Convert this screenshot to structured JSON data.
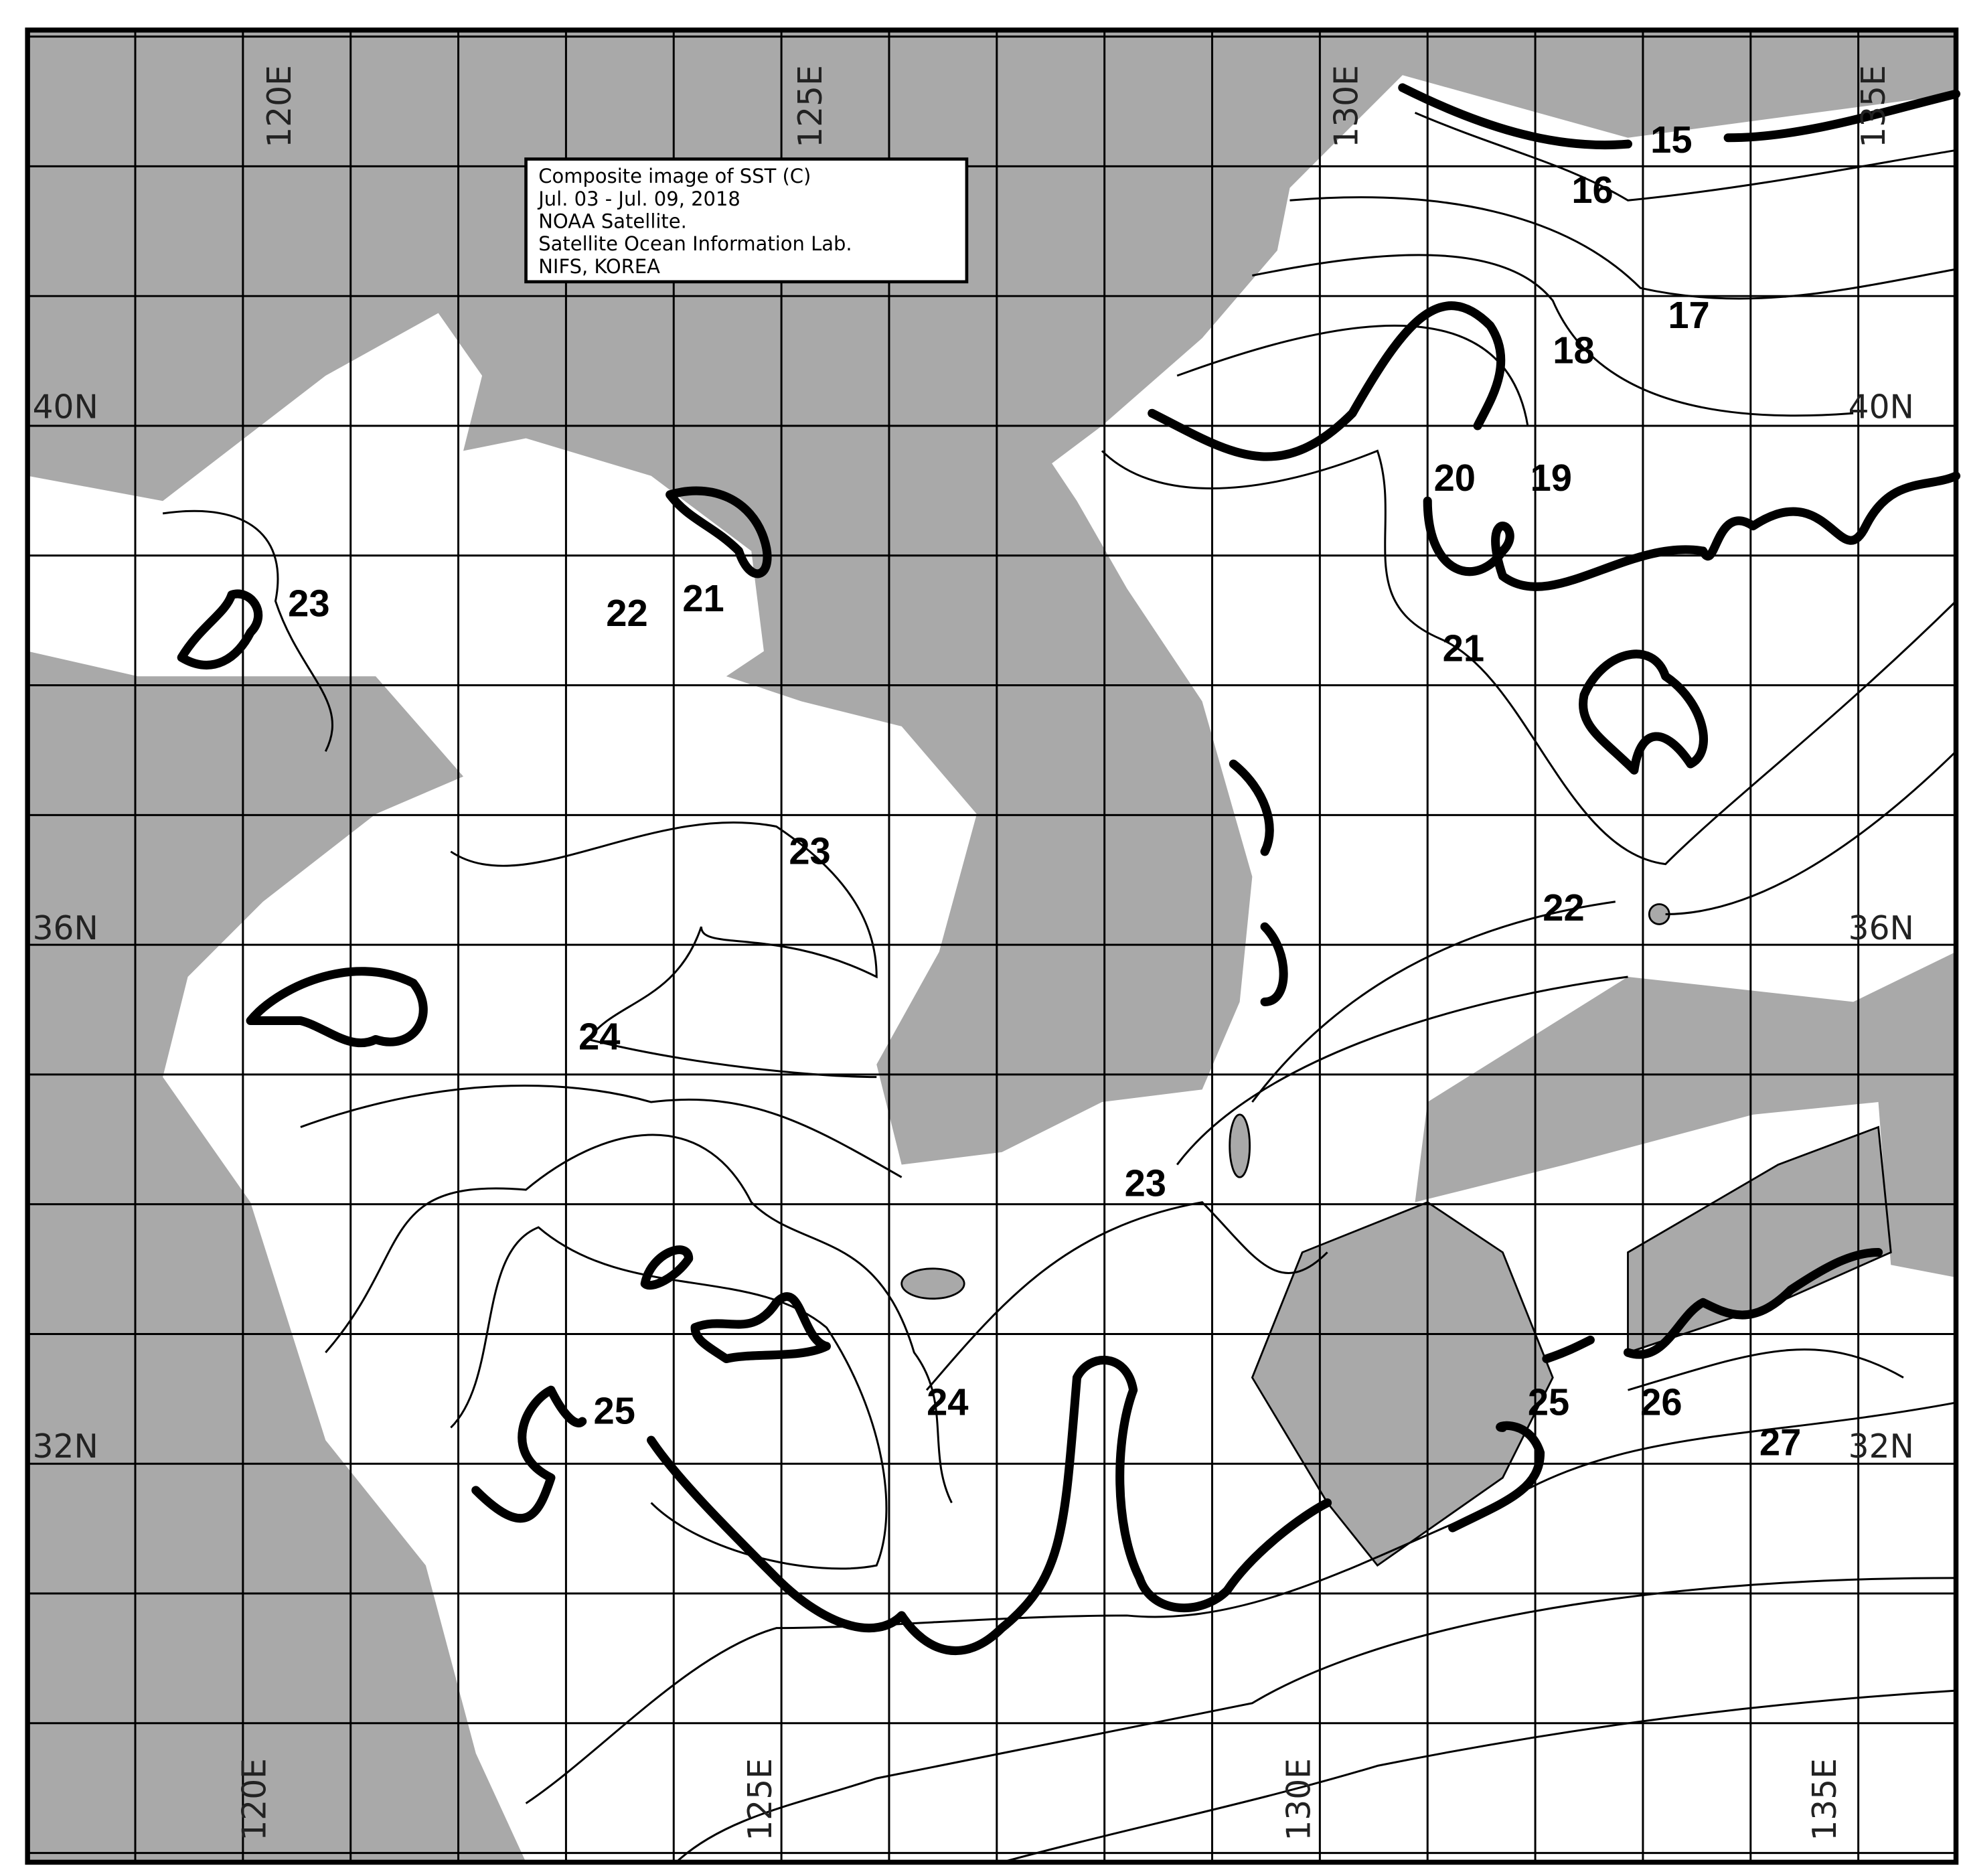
{
  "legend": {
    "lines": [
      "Composite image of SST (C)",
      "Jul. 03 - Jul. 09, 2018",
      "NOAA Satellite.",
      "Satellite Ocean Information Lab.",
      "NIFS, KOREA"
    ]
  },
  "axes": {
    "longitude_labels": [
      "120E",
      "125E",
      "130E",
      "135E"
    ],
    "latitude_labels": [
      "40N",
      "36N",
      "32N"
    ]
  },
  "colors": {
    "land": "#a9a9a9",
    "sea": "#ffffff",
    "contour": "#000000"
  },
  "isotherm_labels": [
    "15",
    "16",
    "17",
    "18",
    "20",
    "19",
    "21",
    "23",
    "22",
    "21",
    "21",
    "23",
    "22",
    "24",
    "23",
    "25",
    "24",
    "25",
    "26",
    "27"
  ]
}
